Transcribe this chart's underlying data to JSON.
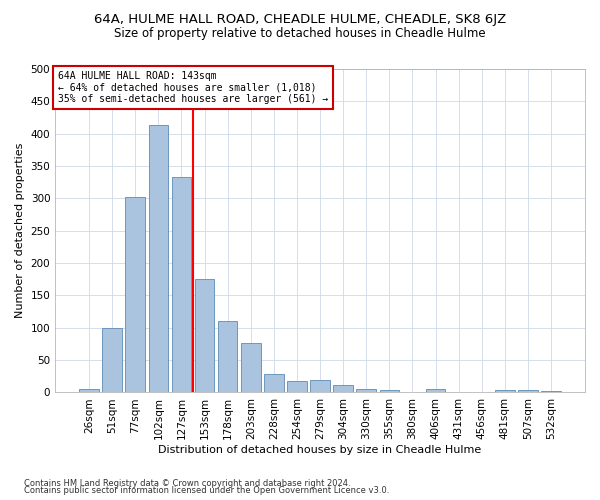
{
  "title": "64A, HULME HALL ROAD, CHEADLE HULME, CHEADLE, SK8 6JZ",
  "subtitle": "Size of property relative to detached houses in Cheadle Hulme",
  "xlabel": "Distribution of detached houses by size in Cheadle Hulme",
  "ylabel": "Number of detached properties",
  "footer_line1": "Contains HM Land Registry data © Crown copyright and database right 2024.",
  "footer_line2": "Contains public sector information licensed under the Open Government Licence v3.0.",
  "bar_labels": [
    "26sqm",
    "51sqm",
    "77sqm",
    "102sqm",
    "127sqm",
    "153sqm",
    "178sqm",
    "203sqm",
    "228sqm",
    "254sqm",
    "279sqm",
    "304sqm",
    "330sqm",
    "355sqm",
    "380sqm",
    "406sqm",
    "431sqm",
    "456sqm",
    "481sqm",
    "507sqm",
    "532sqm"
  ],
  "bar_values": [
    5,
    99,
    302,
    413,
    333,
    176,
    111,
    76,
    29,
    18,
    19,
    11,
    6,
    4,
    1,
    5,
    1,
    0,
    4,
    4,
    2
  ],
  "bar_color": "#aac4e0",
  "bar_edgecolor": "#5b8db8",
  "grid_color": "#d0d8e8",
  "property_line_bin": 5,
  "annotation_text": "64A HULME HALL ROAD: 143sqm\n← 64% of detached houses are smaller (1,018)\n35% of semi-detached houses are larger (561) →",
  "annotation_box_color": "#cc0000",
  "ylim": [
    0,
    500
  ],
  "yticks": [
    0,
    50,
    100,
    150,
    200,
    250,
    300,
    350,
    400,
    450,
    500
  ],
  "title_fontsize": 9.5,
  "subtitle_fontsize": 8.5,
  "xlabel_fontsize": 8,
  "ylabel_fontsize": 8,
  "tick_fontsize": 7.5,
  "annotation_fontsize": 7,
  "footer_fontsize": 6
}
